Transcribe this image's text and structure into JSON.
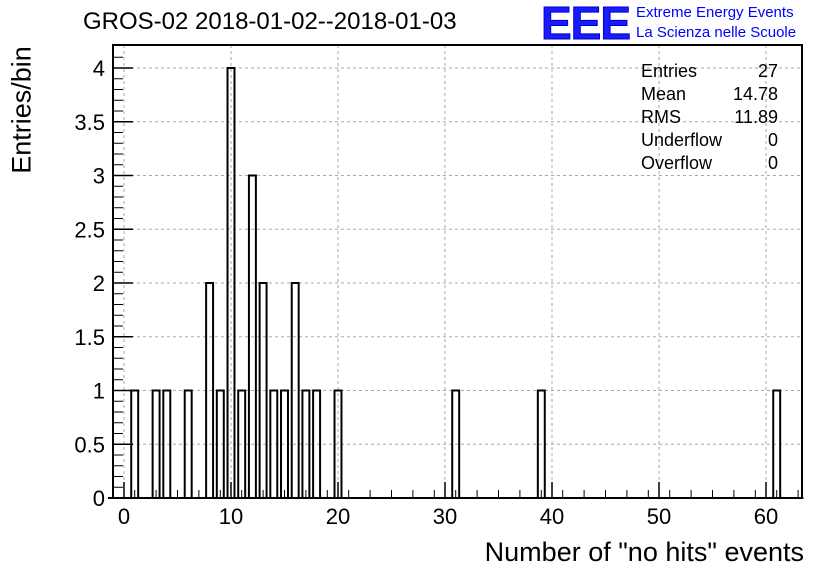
{
  "title": "GROS-02 2018-01-02--2018-01-03",
  "logo": {
    "mark": "EEE",
    "line1": "Extreme Energy Events",
    "line2": "La Scienza nelle Scuole",
    "color": "#0000ff"
  },
  "stats": [
    {
      "label": "Entries",
      "value": "27"
    },
    {
      "label": "Mean",
      "value": "14.78"
    },
    {
      "label": "RMS",
      "value": "11.89"
    },
    {
      "label": "Underflow",
      "value": "0"
    },
    {
      "label": "Overflow",
      "value": "0"
    }
  ],
  "chart_data": {
    "type": "bar",
    "style": "step-histogram",
    "title": "GROS-02 2018-01-02--2018-01-03",
    "xlabel": "Number of \"no hits\" events",
    "ylabel": "Entries/bin",
    "xlim": [
      -1.5,
      63.5
    ],
    "ylim": [
      0,
      4.2
    ],
    "bin_width": 0.65,
    "xticks": [
      0,
      10,
      20,
      30,
      40,
      50,
      60
    ],
    "yticks": [
      0,
      0.5,
      1,
      1.5,
      2,
      2.5,
      3,
      3.5,
      4
    ],
    "ytick_labels": [
      "0",
      "0.5",
      "1",
      "1.5",
      "2",
      "2.5",
      "3",
      "3.5",
      "4"
    ],
    "grid": true,
    "bins": [
      {
        "x": 1,
        "count": 1
      },
      {
        "x": 3,
        "count": 1
      },
      {
        "x": 4,
        "count": 1
      },
      {
        "x": 6,
        "count": 1
      },
      {
        "x": 8,
        "count": 2
      },
      {
        "x": 9,
        "count": 1
      },
      {
        "x": 10,
        "count": 4
      },
      {
        "x": 11,
        "count": 1
      },
      {
        "x": 12,
        "count": 3
      },
      {
        "x": 13,
        "count": 2
      },
      {
        "x": 14,
        "count": 1
      },
      {
        "x": 15,
        "count": 1
      },
      {
        "x": 16,
        "count": 2
      },
      {
        "x": 17,
        "count": 1
      },
      {
        "x": 18,
        "count": 1
      },
      {
        "x": 20,
        "count": 1
      },
      {
        "x": 31,
        "count": 1
      },
      {
        "x": 39,
        "count": 1
      },
      {
        "x": 61,
        "count": 1
      }
    ]
  }
}
